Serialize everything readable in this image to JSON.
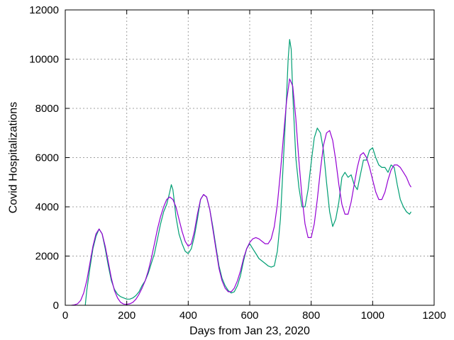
{
  "chart_data": {
    "type": "line",
    "title": "",
    "xlabel": "Days from Jan 23, 2020",
    "ylabel": "Covid Hospitalizations",
    "xlim": [
      0,
      1200
    ],
    "ylim": [
      0,
      12000
    ],
    "xticks": [
      0,
      200,
      400,
      600,
      800,
      1000,
      1200
    ],
    "yticks": [
      0,
      2000,
      4000,
      6000,
      8000,
      10000,
      12000
    ],
    "grid": true,
    "legend": "none",
    "series": [
      {
        "color": "#009e73",
        "x": [
          65,
          70,
          80,
          90,
          100,
          110,
          120,
          130,
          140,
          150,
          160,
          170,
          180,
          190,
          200,
          210,
          220,
          230,
          240,
          250,
          260,
          270,
          280,
          290,
          300,
          310,
          320,
          330,
          340,
          345,
          350,
          355,
          360,
          370,
          380,
          390,
          400,
          410,
          420,
          430,
          440,
          450,
          460,
          470,
          480,
          490,
          500,
          510,
          520,
          530,
          540,
          550,
          560,
          570,
          580,
          590,
          600,
          610,
          620,
          630,
          640,
          650,
          660,
          670,
          680,
          690,
          700,
          710,
          720,
          725,
          730,
          735,
          740,
          750,
          760,
          770,
          780,
          790,
          800,
          810,
          820,
          830,
          840,
          850,
          860,
          870,
          880,
          890,
          900,
          910,
          920,
          930,
          940,
          950,
          960,
          970,
          980,
          990,
          1000,
          1010,
          1020,
          1030,
          1040,
          1050,
          1060,
          1070,
          1080,
          1090,
          1100,
          1110,
          1120,
          1125
        ],
        "values": [
          0,
          600,
          1500,
          2300,
          2800,
          3100,
          2900,
          2300,
          1600,
          1000,
          650,
          450,
          350,
          300,
          250,
          250,
          300,
          400,
          550,
          800,
          1000,
          1300,
          1700,
          2100,
          2700,
          3300,
          3800,
          4100,
          4600,
          4900,
          4700,
          4200,
          3600,
          2900,
          2500,
          2200,
          2100,
          2300,
          2800,
          3500,
          4300,
          4500,
          4400,
          3900,
          3200,
          2400,
          1600,
          1100,
          800,
          600,
          500,
          550,
          800,
          1200,
          1800,
          2300,
          2500,
          2300,
          2100,
          1900,
          1800,
          1700,
          1600,
          1550,
          1600,
          2200,
          3500,
          6000,
          8500,
          10000,
          10800,
          10400,
          8600,
          6000,
          4800,
          4000,
          4000,
          4700,
          5800,
          6800,
          7200,
          7000,
          6300,
          5000,
          3800,
          3200,
          3500,
          4200,
          5200,
          5400,
          5200,
          5300,
          4900,
          4700,
          5300,
          5900,
          5900,
          6300,
          6400,
          6000,
          5700,
          5600,
          5600,
          5400,
          5700,
          5600,
          4900,
          4300,
          4000,
          3800,
          3700,
          3800
        ]
      },
      {
        "color": "#9400d3",
        "x": [
          20,
          30,
          40,
          50,
          60,
          70,
          80,
          90,
          100,
          110,
          120,
          130,
          140,
          150,
          160,
          170,
          180,
          190,
          200,
          210,
          220,
          230,
          240,
          250,
          260,
          270,
          280,
          290,
          300,
          310,
          320,
          330,
          340,
          350,
          360,
          370,
          380,
          390,
          400,
          410,
          420,
          430,
          440,
          450,
          460,
          470,
          480,
          490,
          500,
          510,
          520,
          530,
          540,
          550,
          560,
          570,
          580,
          590,
          600,
          610,
          620,
          630,
          640,
          650,
          660,
          670,
          680,
          690,
          700,
          710,
          720,
          730,
          740,
          750,
          760,
          770,
          780,
          790,
          800,
          810,
          820,
          830,
          840,
          850,
          860,
          870,
          880,
          890,
          900,
          910,
          920,
          930,
          940,
          950,
          960,
          970,
          980,
          990,
          1000,
          1010,
          1020,
          1030,
          1040,
          1050,
          1060,
          1070,
          1080,
          1090,
          1100,
          1110,
          1120,
          1125
        ],
        "values": [
          0,
          20,
          60,
          200,
          500,
          1000,
          1700,
          2400,
          2900,
          3100,
          2900,
          2400,
          1750,
          1100,
          600,
          300,
          120,
          50,
          40,
          60,
          120,
          250,
          450,
          700,
          1000,
          1400,
          1900,
          2500,
          3100,
          3600,
          4000,
          4300,
          4400,
          4300,
          4000,
          3500,
          3000,
          2600,
          2400,
          2500,
          3000,
          3700,
          4300,
          4500,
          4400,
          3900,
          3100,
          2300,
          1500,
          1000,
          700,
          550,
          550,
          700,
          1000,
          1400,
          1900,
          2300,
          2550,
          2700,
          2750,
          2700,
          2600,
          2500,
          2500,
          2700,
          3200,
          4100,
          5400,
          6900,
          8300,
          9200,
          8900,
          7600,
          5900,
          4400,
          3300,
          2750,
          2750,
          3300,
          4300,
          5500,
          6500,
          7000,
          7100,
          6700,
          5900,
          4900,
          4100,
          3700,
          3700,
          4200,
          4900,
          5600,
          6100,
          6200,
          6000,
          5600,
          5100,
          4600,
          4300,
          4300,
          4600,
          5100,
          5500,
          5700,
          5700,
          5600,
          5400,
          5200,
          4900,
          4800
        ]
      }
    ]
  }
}
